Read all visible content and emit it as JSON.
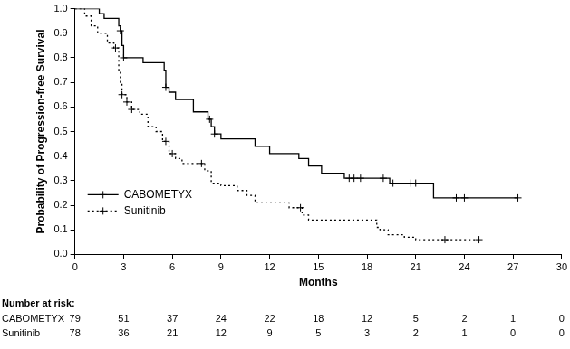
{
  "chart_data": {
    "type": "line",
    "x_label": "Months",
    "y_label": "Probability of Progression-free Survival",
    "xlim": [
      0,
      30
    ],
    "xticks": [
      0,
      3,
      6,
      9,
      12,
      15,
      18,
      21,
      24,
      27,
      30
    ],
    "ylim": [
      0,
      1
    ],
    "yticks": [
      {
        "value": 0,
        "label": "0.0"
      },
      {
        "value": 0.1,
        "label": "0.1"
      },
      {
        "value": 0.2,
        "label": "0.2"
      },
      {
        "value": 0.3,
        "label": "0.3"
      },
      {
        "value": 0.4,
        "label": "0.4"
      },
      {
        "value": 0.5,
        "label": "0.5"
      },
      {
        "value": 0.6,
        "label": "0.6"
      },
      {
        "value": 0.7,
        "label": "0.7"
      },
      {
        "value": 0.8,
        "label": "0.8"
      },
      {
        "value": 0.9,
        "label": "0.9"
      },
      {
        "value": 1,
        "label": "1.0"
      }
    ],
    "grid": false,
    "legend": "lower left",
    "series": [
      {
        "name": "CABOMETYX",
        "color": "#000000",
        "line_style": "solid",
        "marker": "plus",
        "x": [
          0,
          1.5,
          1.8,
          2.7,
          2.8,
          2.9,
          3.0,
          4.2,
          5.5,
          5.6,
          5.8,
          6.2,
          7.3,
          8.2,
          8.4,
          8.6,
          9.0,
          11.1,
          12.0,
          13.8,
          14.4,
          15.2,
          16.6,
          19.4,
          22.1,
          27.3
        ],
        "values": [
          1.0,
          0.98,
          0.96,
          0.93,
          0.91,
          0.85,
          0.8,
          0.78,
          0.75,
          0.68,
          0.66,
          0.63,
          0.58,
          0.55,
          0.52,
          0.49,
          0.47,
          0.44,
          0.41,
          0.39,
          0.36,
          0.33,
          0.31,
          0.29,
          0.23,
          0.23
        ],
        "censored": {
          "x": [
            2.8,
            3.0,
            5.6,
            8.3,
            8.6,
            16.9,
            17.2,
            17.6,
            19.0,
            19.6,
            20.7,
            21.0,
            23.5,
            24.0,
            27.3
          ],
          "values": [
            0.91,
            0.8,
            0.68,
            0.55,
            0.49,
            0.31,
            0.31,
            0.31,
            0.31,
            0.29,
            0.29,
            0.29,
            0.23,
            0.23,
            0.23
          ]
        }
      },
      {
        "name": "Sunitinib",
        "color": "#000000",
        "line_style": "dotted",
        "marker": "plus",
        "x": [
          0,
          0.6,
          1.0,
          1.4,
          2.0,
          2.4,
          2.7,
          2.8,
          2.9,
          3.2,
          3.5,
          4.0,
          4.5,
          5.0,
          5.4,
          5.8,
          6.2,
          6.6,
          8.0,
          8.4,
          9.0,
          10.0,
          10.6,
          11.1,
          13.2,
          14.0,
          14.4,
          18.6,
          18.8,
          19.3,
          20.3,
          21.0,
          24.9
        ],
        "values": [
          1.0,
          0.97,
          0.93,
          0.9,
          0.86,
          0.84,
          0.75,
          0.7,
          0.65,
          0.62,
          0.59,
          0.57,
          0.52,
          0.5,
          0.46,
          0.41,
          0.39,
          0.37,
          0.34,
          0.29,
          0.28,
          0.26,
          0.24,
          0.21,
          0.19,
          0.16,
          0.14,
          0.11,
          0.1,
          0.08,
          0.07,
          0.06,
          0.06
        ],
        "censored": {
          "x": [
            2.5,
            2.9,
            3.2,
            3.5,
            5.6,
            6.0,
            7.8,
            13.9,
            22.8,
            24.9
          ],
          "values": [
            0.84,
            0.65,
            0.62,
            0.59,
            0.46,
            0.41,
            0.37,
            0.19,
            0.06,
            0.06
          ]
        }
      }
    ],
    "number_at_risk": {
      "title": "Number at risk:",
      "x": [
        0,
        3,
        6,
        9,
        12,
        15,
        18,
        21,
        24,
        27,
        30
      ],
      "rows": [
        {
          "name": "CABOMETYX",
          "values": [
            79,
            51,
            37,
            24,
            22,
            18,
            12,
            5,
            2,
            1,
            0
          ]
        },
        {
          "name": "Sunitinib",
          "values": [
            78,
            36,
            21,
            12,
            9,
            5,
            3,
            2,
            1,
            0,
            0
          ]
        }
      ]
    }
  }
}
